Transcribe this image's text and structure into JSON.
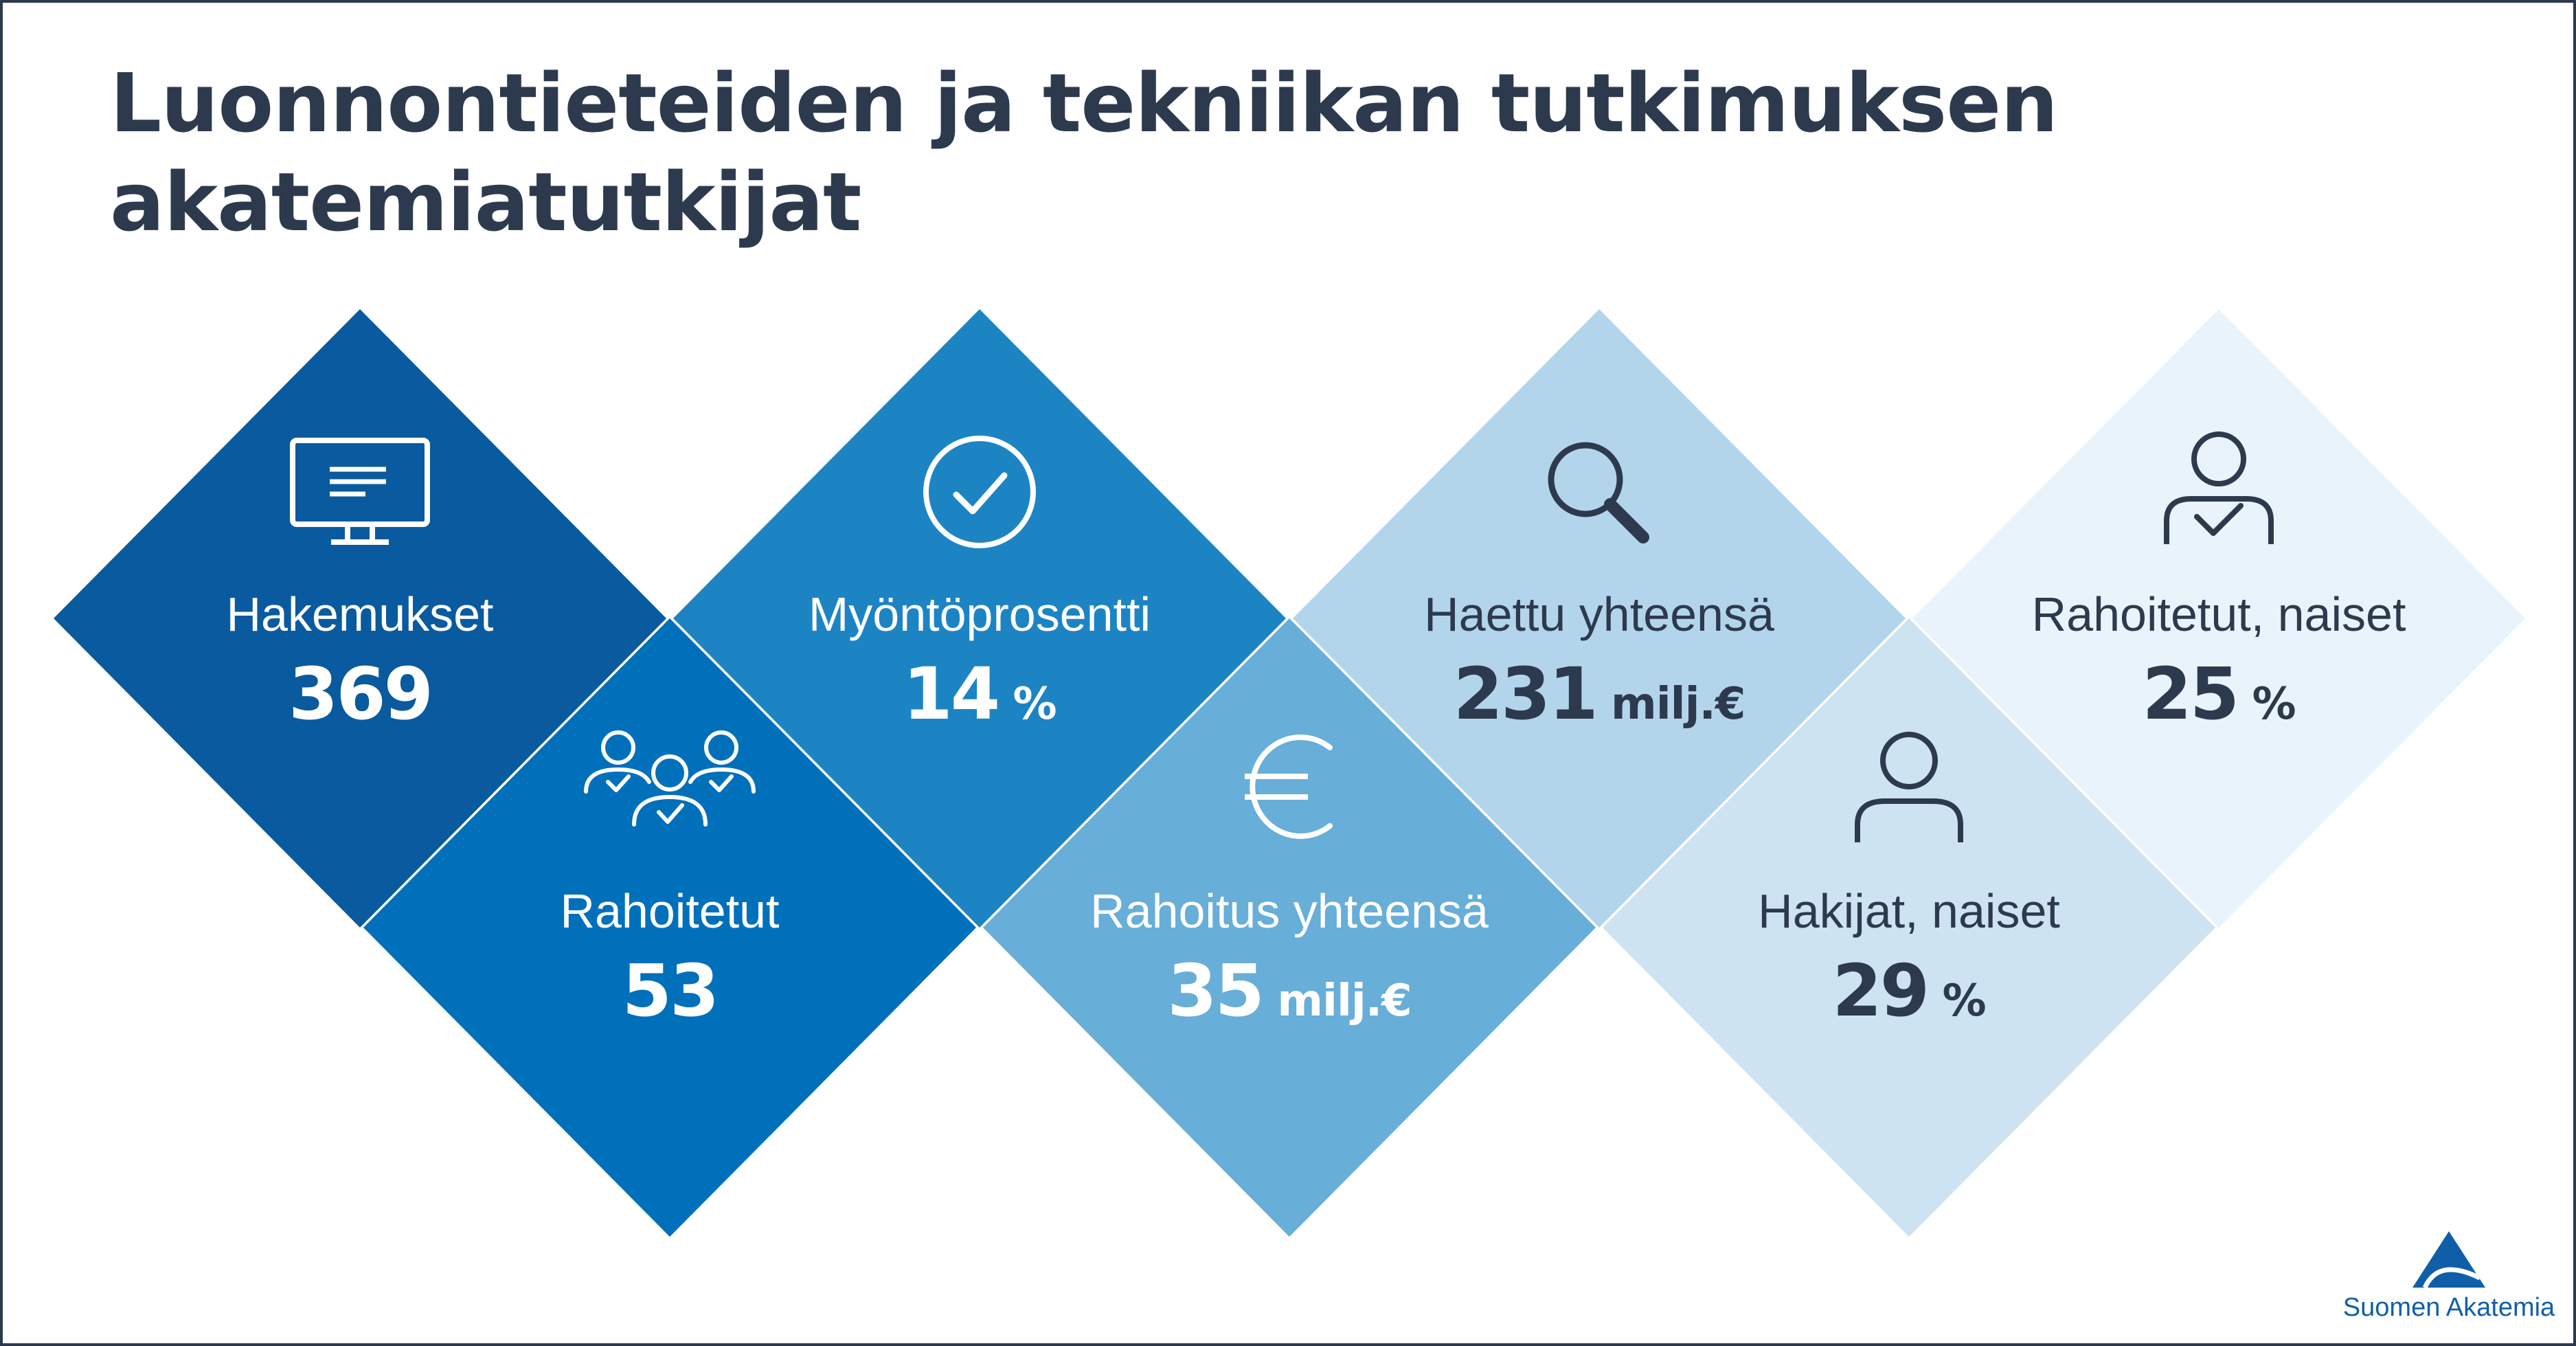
{
  "title_lines": [
    "Luonnontieteiden ja tekniikan tutkimuksen",
    "akatemiatutkijat"
  ],
  "stats": {
    "hakemukset": {
      "label": "Hakemukset",
      "value": "369",
      "unit": ""
    },
    "rahoitetut": {
      "label": "Rahoitetut",
      "value": "53",
      "unit": ""
    },
    "myontoprosentti": {
      "label": "Myöntöprosentti",
      "value": "14",
      "unit": " %"
    },
    "rahoitus_yhteensa": {
      "label": "Rahoitus yhteensä",
      "value": "35",
      "unit": " milj.€"
    },
    "haettu_yhteensa": {
      "label": "Haettu yhteensä",
      "value": "231",
      "unit": " milj.€"
    },
    "hakijat_naiset": {
      "label": "Hakijat, naiset",
      "value": "29",
      "unit": " %"
    },
    "rahoitetut_naiset": {
      "label": "Rahoitetut, naiset",
      "value": "25",
      "unit": " %"
    }
  },
  "icons": {
    "hakemukset": "monitor-icon",
    "rahoitetut": "group-check-icon",
    "myontoprosentti": "check-circle-icon",
    "rahoitus_yhteensa": "euro-icon",
    "haettu_yhteensa": "search-icon",
    "hakijat_naiset": "person-icon",
    "rahoitetut_naiset": "person-check-icon"
  },
  "colors": {
    "title": "#2d3a4e",
    "hakemukset": "#0a5a9f",
    "rahoitetut": "#0070bb",
    "myontoprosentti": "#1d84c4",
    "rahoitus_yhteensa": "#67aed8",
    "haettu_yhteensa": "#b3d5ec",
    "hakijat_naiset": "#cde3f2",
    "rahoitetut_naiset": "#e9f3fb",
    "logo": "#0f5fa8"
  },
  "logo": {
    "text": "Suomen Akatemia"
  }
}
